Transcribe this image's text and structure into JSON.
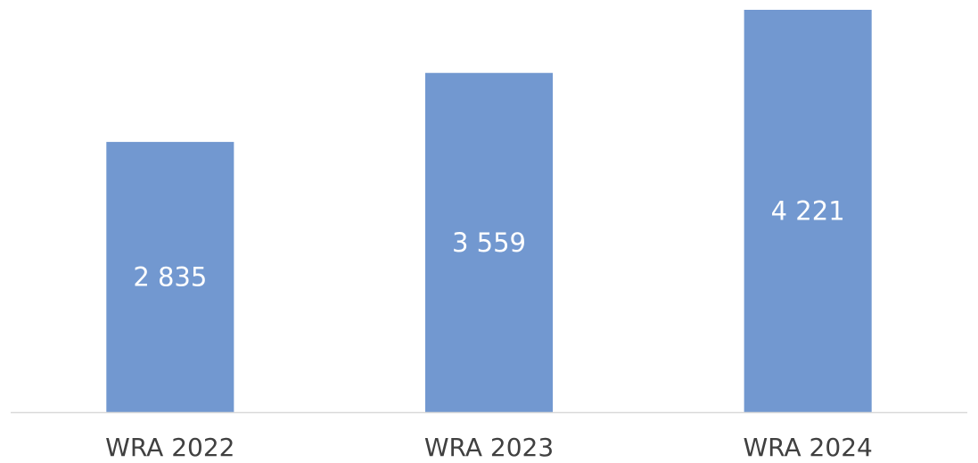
{
  "chart_data": {
    "type": "bar",
    "categories": [
      "WRA 2022",
      "WRA 2023",
      "WRA 2024"
    ],
    "values": [
      2835,
      3559,
      4221
    ],
    "value_labels": [
      "2 835",
      "3 559",
      "4 221"
    ],
    "color": "#7298d0"
  }
}
